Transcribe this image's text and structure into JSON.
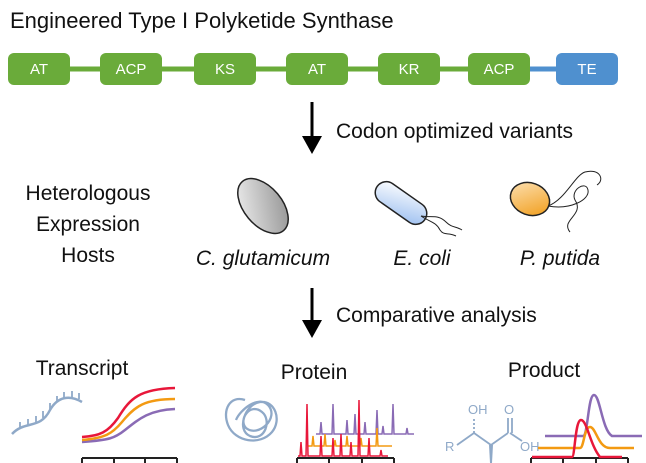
{
  "title": "Engineered Type I Polyketide Synthase",
  "domains": [
    {
      "label": "AT",
      "color": "#6aab3a"
    },
    {
      "label": "ACP",
      "color": "#6aab3a"
    },
    {
      "label": "KS",
      "color": "#6aab3a"
    },
    {
      "label": "AT",
      "color": "#6aab3a"
    },
    {
      "label": "KR",
      "color": "#6aab3a"
    },
    {
      "label": "ACP",
      "color": "#6aab3a"
    },
    {
      "label": "TE",
      "color": "#4f90cf"
    }
  ],
  "step1": "Codon optimized variants",
  "hosts_label": [
    "Heterologous",
    "Expression",
    "Hosts"
  ],
  "hosts": [
    {
      "name": "C. glutamicum",
      "icon": "c-glutamicum-cell-icon",
      "color": "#9a9a9a"
    },
    {
      "name": "E. coli",
      "icon": "e-coli-cell-icon",
      "color": "#a8c6f0"
    },
    {
      "name": "P. putida",
      "icon": "p-putida-cell-icon",
      "color": "#f0a020"
    }
  ],
  "step2": "Comparative analysis",
  "analyses": [
    {
      "label": "Transcript",
      "icon": "rna-strand-icon"
    },
    {
      "label": "Protein",
      "icon": "protein-coil-icon"
    },
    {
      "label": "Product",
      "icon": "molecule-structure-icon"
    }
  ],
  "molecule_labels": {
    "oh1": "OH",
    "o": "O",
    "oh2": "OH",
    "r": "R"
  },
  "series_colors": [
    "#e8173a",
    "#f39a12",
    "#8a6bb5"
  ]
}
